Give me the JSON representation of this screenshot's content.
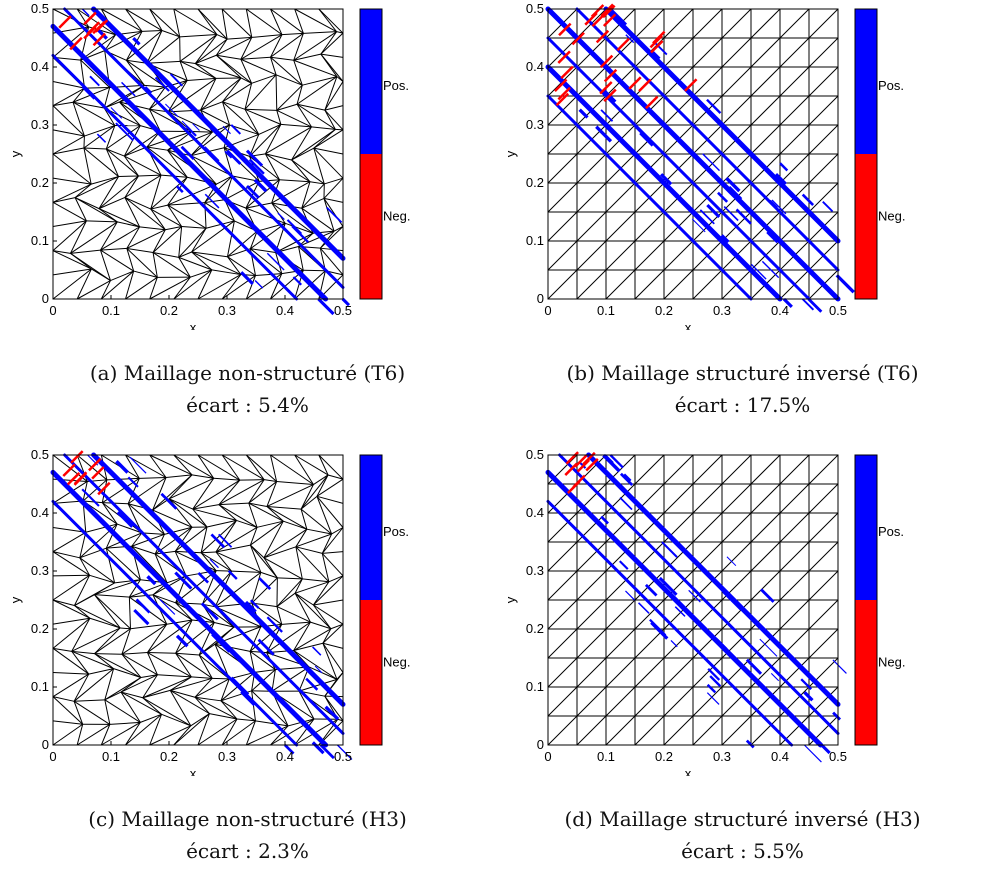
{
  "figure": {
    "colorbar": {
      "pos_label": "Pos.",
      "neg_label": "Neg.",
      "pos_color": "#0000ff",
      "neg_color": "#ff0000"
    },
    "axes": {
      "xlabel": "x",
      "ylabel": "y",
      "xticks": [
        "0",
        "0.1",
        "0.2",
        "0.3",
        "0.4",
        "0.5"
      ],
      "yticks": [
        "0",
        "0.1",
        "0.2",
        "0.3",
        "0.4",
        "0.5"
      ]
    },
    "panels": [
      {
        "id": "a",
        "mesh": "unstructured",
        "caption_line1": "(a) Maillage non-structuré (T6)",
        "caption_line2": "écart : 5.4%"
      },
      {
        "id": "b",
        "mesh": "structured",
        "caption_line1": "(b) Maillage structuré inversé (T6)",
        "caption_line2": "écart : 17.5%"
      },
      {
        "id": "c",
        "mesh": "unstructured",
        "caption_line1": "(c) Maillage non-structuré (H3)",
        "caption_line2": "écart : 2.3%"
      },
      {
        "id": "d",
        "mesh": "structured",
        "caption_line1": "(d) Maillage structuré inversé (H3)",
        "caption_line2": "écart : 5.5%"
      }
    ]
  },
  "chart_data": [
    {
      "type": "other",
      "xlabel": "x",
      "ylabel": "y",
      "xlim": [
        0,
        0.5
      ],
      "ylim": [
        0,
        0.5
      ],
      "legend": [
        "Pos.",
        "Neg."
      ]
    },
    {
      "type": "other",
      "xlabel": "x",
      "ylabel": "y",
      "xlim": [
        0,
        0.5
      ],
      "ylim": [
        0,
        0.5
      ],
      "legend": [
        "Pos.",
        "Neg."
      ]
    },
    {
      "type": "other",
      "xlabel": "x",
      "ylabel": "y",
      "xlim": [
        0,
        0.5
      ],
      "ylim": [
        0,
        0.5
      ],
      "legend": [
        "Pos.",
        "Neg."
      ]
    },
    {
      "type": "other",
      "xlabel": "x",
      "ylabel": "y",
      "xlim": [
        0,
        0.5
      ],
      "ylim": [
        0,
        0.5
      ],
      "legend": [
        "Pos.",
        "Neg."
      ]
    }
  ]
}
